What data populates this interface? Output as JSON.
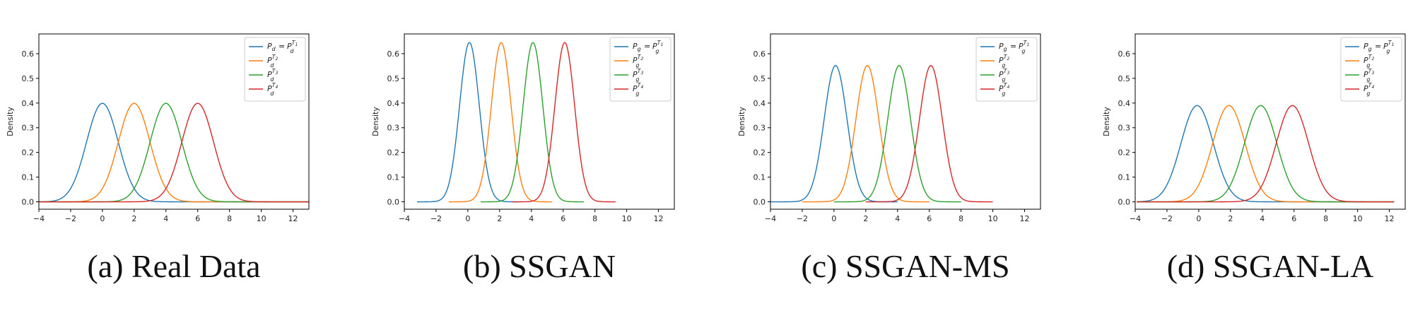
{
  "chart_data": [
    {
      "type": "line",
      "caption": "(a)  Real Data",
      "ylabel": "Density",
      "xlim": [
        -4,
        13
      ],
      "ylim": [
        -0.03,
        0.68
      ],
      "xticks": [
        "−4",
        "−2",
        "0",
        "2",
        "4",
        "6",
        "8",
        "10",
        "12"
      ],
      "yticks": [
        "0.0",
        "0.1",
        "0.2",
        "0.3",
        "0.4",
        "0.5",
        "0.6"
      ],
      "legend_position": "top-right",
      "legend": [
        "P_d = P_d^{T_1}",
        "P_d^{T_2}",
        "P_d^{T_3}",
        "P_d^{T_4}"
      ],
      "series": [
        {
          "mean": 0,
          "sd": 1.0,
          "peak": 0.399,
          "x_range": [
            -4,
            13
          ],
          "color": "#1f77b4"
        },
        {
          "mean": 2,
          "sd": 1.0,
          "peak": 0.399,
          "x_range": [
            -4,
            13
          ],
          "color": "#ff7f0e"
        },
        {
          "mean": 4,
          "sd": 1.0,
          "peak": 0.399,
          "x_range": [
            -4,
            13
          ],
          "color": "#2ca02c"
        },
        {
          "mean": 6,
          "sd": 1.0,
          "peak": 0.399,
          "x_range": [
            -4,
            13
          ],
          "color": "#d62728"
        }
      ]
    },
    {
      "type": "line",
      "caption": "(b)  SSGAN",
      "ylabel": "Density",
      "xlim": [
        -4,
        13
      ],
      "ylim": [
        -0.03,
        0.68
      ],
      "xticks": [
        "−4",
        "−2",
        "0",
        "2",
        "4",
        "6",
        "8",
        "10",
        "12"
      ],
      "yticks": [
        "0.0",
        "0.1",
        "0.2",
        "0.3",
        "0.4",
        "0.5",
        "0.6"
      ],
      "legend_position": "top-right",
      "legend": [
        "P_g = P_g^{T_1}",
        "P_g^{T_2}",
        "P_g^{T_3}",
        "P_g^{T_4}"
      ],
      "series": [
        {
          "mean": 0.1,
          "sd": 0.62,
          "peak": 0.645,
          "x_range": [
            -3.2,
            3.2
          ],
          "color": "#1f77b4"
        },
        {
          "mean": 2.1,
          "sd": 0.62,
          "peak": 0.645,
          "x_range": [
            -1.2,
            5.3
          ],
          "color": "#ff7f0e"
        },
        {
          "mean": 4.1,
          "sd": 0.62,
          "peak": 0.645,
          "x_range": [
            0.8,
            7.3
          ],
          "color": "#2ca02c"
        },
        {
          "mean": 6.1,
          "sd": 0.62,
          "peak": 0.645,
          "x_range": [
            2.8,
            9.3
          ],
          "color": "#d62728"
        }
      ]
    },
    {
      "type": "line",
      "caption": "(c)  SSGAN-MS",
      "ylabel": "Density",
      "xlim": [
        -4,
        13
      ],
      "ylim": [
        -0.03,
        0.68
      ],
      "xticks": [
        "−4",
        "−2",
        "0",
        "2",
        "4",
        "6",
        "8",
        "10",
        "12"
      ],
      "yticks": [
        "0.0",
        "0.1",
        "0.2",
        "0.3",
        "0.4",
        "0.5",
        "0.6"
      ],
      "legend_position": "top-right",
      "legend": [
        "P_g = P_g^{T_1}",
        "P_g^{T_2}",
        "P_g^{T_3}",
        "P_g^{T_4}"
      ],
      "series": [
        {
          "mean": 0.1,
          "sd": 0.72,
          "peak": 0.552,
          "x_range": [
            -4,
            4
          ],
          "color": "#1f77b4"
        },
        {
          "mean": 2.1,
          "sd": 0.72,
          "peak": 0.552,
          "x_range": [
            -2,
            6
          ],
          "color": "#ff7f0e"
        },
        {
          "mean": 4.1,
          "sd": 0.72,
          "peak": 0.552,
          "x_range": [
            0,
            8
          ],
          "color": "#2ca02c"
        },
        {
          "mean": 6.1,
          "sd": 0.72,
          "peak": 0.552,
          "x_range": [
            2,
            10
          ],
          "color": "#d62728"
        }
      ]
    },
    {
      "type": "line",
      "caption": "(d)  SSGAN-LA",
      "ylabel": "Density",
      "xlim": [
        -4,
        13
      ],
      "ylim": [
        -0.03,
        0.68
      ],
      "xticks": [
        "−4",
        "−2",
        "0",
        "2",
        "4",
        "6",
        "8",
        "10",
        "12"
      ],
      "yticks": [
        "0.0",
        "0.1",
        "0.2",
        "0.3",
        "0.4",
        "0.5",
        "0.6"
      ],
      "legend_position": "top-right",
      "legend": [
        "P_g = P_g^{T_1}",
        "P_g^{T_2}",
        "P_g^{T_3}",
        "P_g^{T_4}"
      ],
      "series": [
        {
          "mean": -0.1,
          "sd": 1.02,
          "peak": 0.39,
          "x_range": [
            -3.9,
            12.3
          ],
          "color": "#1f77b4"
        },
        {
          "mean": 1.9,
          "sd": 1.02,
          "peak": 0.39,
          "x_range": [
            -3.9,
            12.3
          ],
          "color": "#ff7f0e"
        },
        {
          "mean": 3.9,
          "sd": 1.02,
          "peak": 0.39,
          "x_range": [
            -3.9,
            12.3
          ],
          "color": "#2ca02c"
        },
        {
          "mean": 5.9,
          "sd": 1.02,
          "peak": 0.39,
          "x_range": [
            -3.9,
            12.3
          ],
          "color": "#d62728"
        }
      ]
    }
  ]
}
